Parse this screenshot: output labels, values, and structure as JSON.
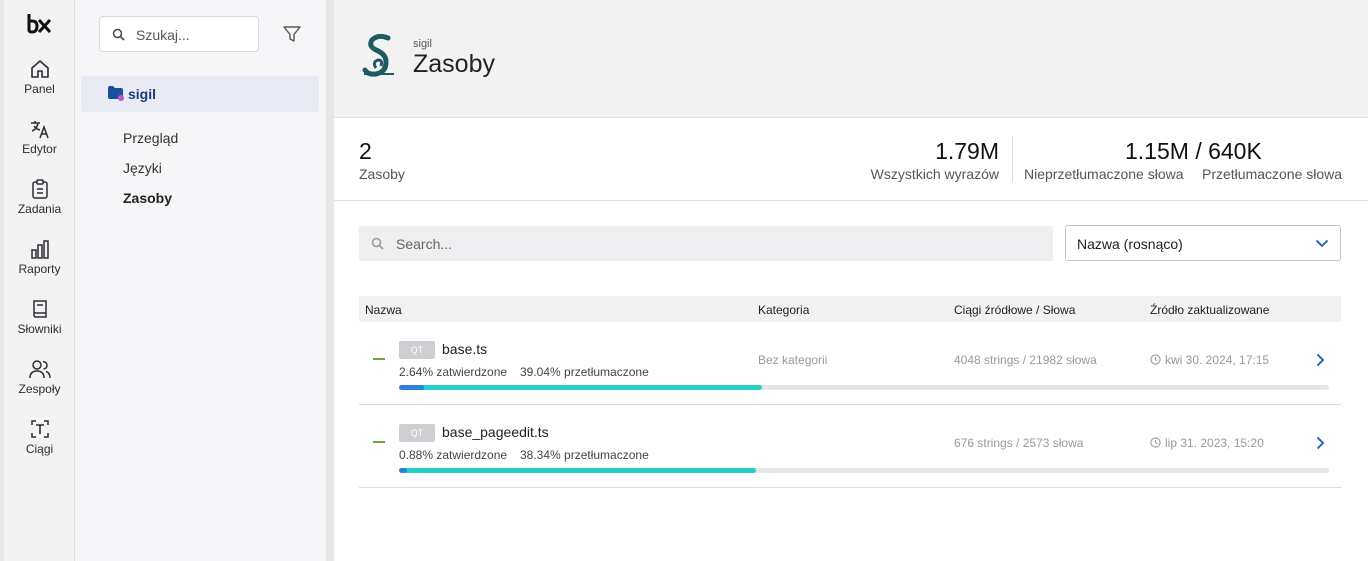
{
  "rail": {
    "items": [
      {
        "label": "Panel",
        "icon": "home-icon"
      },
      {
        "label": "Edytor",
        "icon": "translate-icon"
      },
      {
        "label": "Zadania",
        "icon": "clipboard-icon"
      },
      {
        "label": "Raporty",
        "icon": "bar-chart-icon"
      },
      {
        "label": "Słowniki",
        "icon": "book-icon"
      },
      {
        "label": "Zespoły",
        "icon": "users-icon"
      },
      {
        "label": "Ciągi",
        "icon": "text-string-icon"
      }
    ]
  },
  "sidebar": {
    "search_placeholder": "Szukaj...",
    "project_name": "sigil",
    "nav": [
      {
        "label": "Przegląd",
        "active": false
      },
      {
        "label": "Języki",
        "active": false
      },
      {
        "label": "Zasoby",
        "active": true
      }
    ]
  },
  "header": {
    "project": "sigil",
    "title": "Zasoby"
  },
  "stats": {
    "resources_count": "2",
    "resources_label": "Zasoby",
    "total_words": "1.79M",
    "total_words_label": "Wszystkich wyrazów",
    "untranslated_translated": "1.15M / 640K",
    "untranslated_label": "Nieprzetłumaczone słowa",
    "translated_label": "Przetłumaczone słowa"
  },
  "filters": {
    "search_placeholder": "Search...",
    "sort_value": "Nazwa (rosnąco)"
  },
  "table": {
    "headers": [
      "Nazwa",
      "Kategoria",
      "Ciągi źródłowe / Słowa",
      "Źródło zaktualizowane"
    ],
    "rows": [
      {
        "badge": "QT",
        "name": "base.ts",
        "approved": "2.64% zatwierdzone",
        "translated": "39.04% przetłumaczone",
        "approved_pct": 2.64,
        "translated_pct": 39.04,
        "category": "Bez kategorii",
        "strings": "4048 strings / 21982 słowa",
        "updated": "kwi 30. 2024, 17:15"
      },
      {
        "badge": "QT",
        "name": "base_pageedit.ts",
        "approved": "0.88% zatwierdzone",
        "translated": "38.34% przetłumaczone",
        "approved_pct": 0.88,
        "translated_pct": 38.34,
        "category": "",
        "strings": "676 strings / 2573 słowa",
        "updated": "lip 31. 2023, 15:20"
      }
    ]
  },
  "colors": {
    "accent": "#1d3c7a",
    "translated_bar": "#27cfc9",
    "approved_bar": "#2f7fe0",
    "status_dash": "#6aa53a"
  }
}
